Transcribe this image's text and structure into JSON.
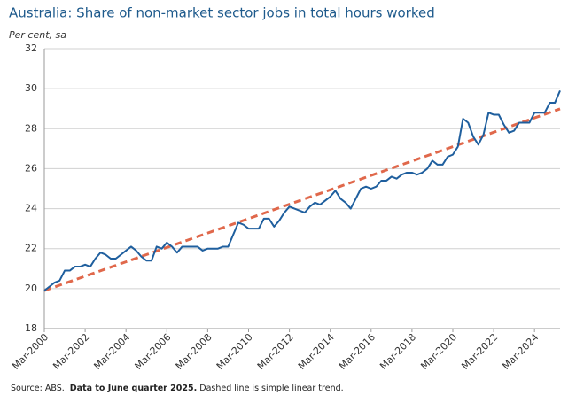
{
  "chart_data": {
    "type": "line",
    "title": "Australia: Share of non-market sector jobs in total hours worked",
    "y_label": "Per cent, sa",
    "source": "Source: ABS.",
    "note": "Data to June quarter 2025.",
    "note2": "Dashed line is simple linear trend.",
    "categories": [
      "Mar-2000",
      null,
      null,
      null,
      null,
      null,
      null,
      null,
      "Mar-2002",
      null,
      null,
      null,
      null,
      null,
      null,
      null,
      "Mar-2004",
      null,
      null,
      null,
      null,
      null,
      null,
      null,
      "Mar-2006",
      null,
      null,
      null,
      null,
      null,
      null,
      null,
      "Mar-2008",
      null,
      null,
      null,
      null,
      null,
      null,
      null,
      "Mar-2010",
      null,
      null,
      null,
      null,
      null,
      null,
      null,
      "Mar-2012",
      null,
      null,
      null,
      null,
      null,
      null,
      null,
      "Mar-2014",
      null,
      null,
      null,
      null,
      null,
      null,
      null,
      "Mar-2016",
      null,
      null,
      null,
      null,
      null,
      null,
      null,
      "Mar-2018",
      null,
      null,
      null,
      null,
      null,
      null,
      null,
      "Mar-2020",
      null,
      null,
      null,
      null,
      null,
      null,
      null,
      "Mar-2022",
      null,
      null,
      null,
      null,
      null,
      null,
      null,
      "Mar-2024",
      null,
      null,
      null,
      null,
      null
    ],
    "series": [
      {
        "color": "#1f5f9e",
        "dashed": false,
        "values": [
          19.9,
          20.1,
          20.3,
          20.4,
          20.9,
          20.9,
          21.1,
          21.1,
          21.2,
          21.1,
          21.5,
          21.8,
          21.7,
          21.5,
          21.5,
          21.7,
          21.9,
          22.1,
          21.9,
          21.6,
          21.4,
          21.4,
          22.1,
          22.0,
          22.3,
          22.1,
          21.8,
          22.1,
          22.1,
          22.1,
          22.1,
          21.9,
          22.0,
          22.0,
          22.0,
          22.1,
          22.1,
          22.7,
          23.3,
          23.2,
          23.0,
          23.0,
          23.0,
          23.5,
          23.5,
          23.1,
          23.4,
          23.8,
          24.1,
          24.0,
          23.9,
          23.8,
          24.1,
          24.3,
          24.2,
          24.4,
          24.6,
          24.9,
          24.5,
          24.3,
          24.0,
          24.5,
          25.0,
          25.1,
          25.0,
          25.1,
          25.4,
          25.4,
          25.6,
          25.5,
          25.7,
          25.8,
          25.8,
          25.7,
          25.8,
          26.0,
          26.4,
          26.2,
          26.2,
          26.6,
          26.7,
          27.1,
          28.5,
          28.3,
          27.6,
          27.2,
          27.7,
          28.8,
          28.7,
          28.7,
          28.2,
          27.8,
          27.9,
          28.3,
          28.3,
          28.3,
          28.8,
          28.8,
          28.8,
          29.3,
          29.3,
          29.9
        ]
      },
      {
        "color": "#e0684b",
        "dashed": true,
        "values": [
          19.9,
          19.99,
          20.08,
          20.17,
          20.26,
          20.35,
          20.44,
          20.53,
          20.62,
          20.71,
          20.8,
          20.89,
          20.98,
          21.07,
          21.16,
          21.25,
          21.34,
          21.43,
          21.52,
          21.61,
          21.7,
          21.79,
          21.88,
          21.97,
          22.06,
          22.15,
          22.24,
          22.33,
          22.42,
          22.51,
          22.6,
          22.69,
          22.78,
          22.87,
          22.96,
          23.05,
          23.14,
          23.23,
          23.32,
          23.41,
          23.5,
          23.59,
          23.68,
          23.77,
          23.86,
          23.95,
          24.04,
          24.13,
          24.22,
          24.31,
          24.4,
          24.49,
          24.58,
          24.67,
          24.76,
          24.85,
          24.94,
          25.03,
          25.12,
          25.21,
          25.3,
          25.39,
          25.48,
          25.57,
          25.66,
          25.75,
          25.84,
          25.93,
          26.02,
          26.11,
          26.2,
          26.29,
          26.38,
          26.47,
          26.56,
          26.65,
          26.74,
          26.83,
          26.92,
          27.01,
          27.1,
          27.19,
          27.28,
          27.37,
          27.46,
          27.55,
          27.64,
          27.73,
          27.82,
          27.91,
          28.0,
          28.09,
          28.18,
          28.27,
          28.36,
          28.45,
          28.54,
          28.63,
          28.72,
          28.81,
          28.9,
          28.99
        ]
      }
    ],
    "ylim": [
      18,
      32
    ],
    "yticks": [
      18,
      20,
      22,
      24,
      26,
      28,
      30,
      32
    ],
    "grid": true
  }
}
